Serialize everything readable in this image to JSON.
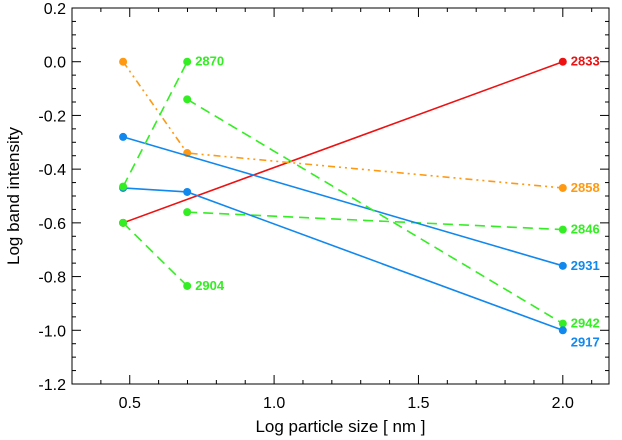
{
  "chart_data": {
    "type": "line",
    "xlabel": "Log particle size [ nm ]",
    "ylabel": "Log band intensity",
    "xlim": [
      0.3,
      2.16
    ],
    "ylim": [
      -1.2,
      0.2
    ],
    "xticks": [
      0.5,
      1.0,
      1.5,
      2.0
    ],
    "xtick_labels": [
      "0.5",
      "1.0",
      "1.5",
      "2.0"
    ],
    "yticks": [
      -1.2,
      -1.0,
      -0.8,
      -0.6,
      -0.4,
      -0.2,
      0.0,
      0.2
    ],
    "ytick_labels": [
      "-1.2",
      "-1.0",
      "-0.8",
      "-0.6",
      "-0.4",
      "-0.2",
      "0.0",
      "0.2"
    ],
    "grid": false,
    "series": [
      {
        "name": "2833",
        "color": "#ee1111",
        "dash": "solid",
        "x": [
          0.477,
          2.0
        ],
        "y": [
          -0.6,
          0.0
        ],
        "label_anchor": "end"
      },
      {
        "name": "2858",
        "color": "#ff9911",
        "dash": "dashdotdot",
        "x": [
          0.477,
          0.699,
          2.0
        ],
        "y": [
          0.0,
          -0.34,
          -0.47
        ],
        "label_anchor": "end"
      },
      {
        "name": "2846",
        "color": "#33ee22",
        "dash": "dash",
        "x": [
          0.699,
          2.0
        ],
        "y": [
          -0.56,
          -0.625
        ],
        "label_anchor": "end"
      },
      {
        "name": "2931",
        "color": "#1188ee",
        "dash": "solid",
        "x": [
          0.477,
          2.0
        ],
        "y": [
          -0.28,
          -0.76
        ],
        "label_anchor": "end"
      },
      {
        "name": "2942",
        "color": "#33ee22",
        "dash": "dash",
        "x": [
          0.699,
          2.0
        ],
        "y": [
          -0.14,
          -0.975
        ],
        "label_anchor": "end"
      },
      {
        "name": "2917",
        "color": "#1188ee",
        "dash": "solid",
        "x": [
          0.477,
          0.699,
          2.0
        ],
        "y": [
          -0.47,
          -0.485,
          -1.0
        ],
        "label_anchor": "end_below"
      },
      {
        "name": "2870",
        "color": "#33ee22",
        "dash": "dash",
        "x": [
          0.477,
          0.699
        ],
        "y": [
          -0.465,
          0.0
        ],
        "label_anchor": "end"
      },
      {
        "name": "2904",
        "color": "#33ee22",
        "dash": "dash",
        "x": [
          0.477,
          0.699
        ],
        "y": [
          -0.6,
          -0.835
        ],
        "label_anchor": "end"
      }
    ]
  }
}
